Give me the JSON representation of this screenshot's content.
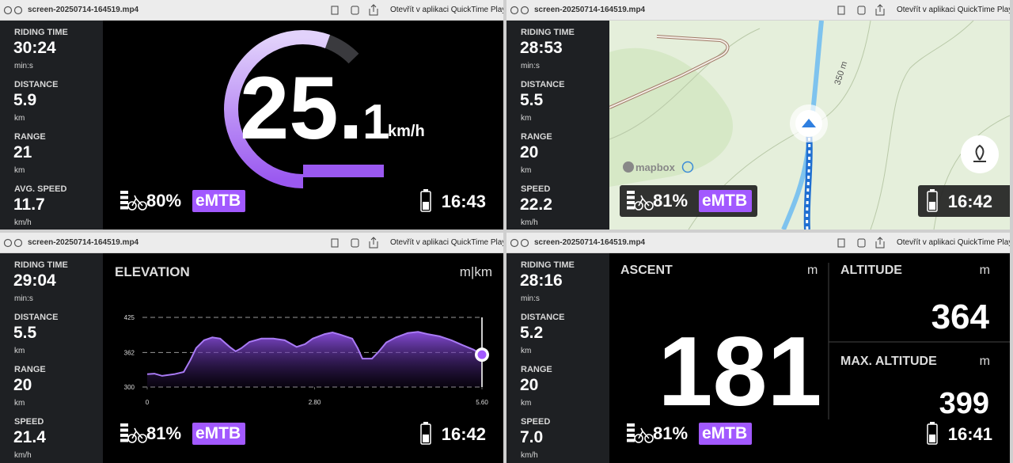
{
  "windows": [
    {
      "title": "screen-20250714-164519.mp4",
      "open_button": "Otevřít v aplikaci QuickTime Player",
      "sidebar": [
        {
          "label": "RIDING TIME",
          "value": "30:24",
          "unit": "min:s"
        },
        {
          "label": "DISTANCE",
          "value": "5.9",
          "unit": "km"
        },
        {
          "label": "RANGE",
          "value": "21",
          "unit": "km"
        },
        {
          "label": "AVG. SPEED",
          "value": "11.7",
          "unit": "km/h"
        }
      ],
      "speed": {
        "whole": "25.",
        "fraction": "1",
        "unit": "km/h"
      },
      "status": {
        "battery": "80%",
        "mode": "eMTB",
        "time": "16:43"
      }
    },
    {
      "title": "screen-20250714-164519.mp4",
      "open_button": "Otevřít v aplikaci QuickTime Player",
      "sidebar": [
        {
          "label": "RIDING TIME",
          "value": "28:53",
          "unit": "min:s"
        },
        {
          "label": "DISTANCE",
          "value": "5.5",
          "unit": "km"
        },
        {
          "label": "RANGE",
          "value": "20",
          "unit": "km"
        },
        {
          "label": "SPEED",
          "value": "22.2",
          "unit": "km/h"
        }
      ],
      "map": {
        "contour_label": "350 m",
        "attribution": "mapbox"
      },
      "status": {
        "battery": "81%",
        "mode": "eMTB",
        "time": "16:42"
      }
    },
    {
      "title": "screen-20250714-164519.mp4",
      "open_button": "Otevřít v aplikaci QuickTime Player",
      "sidebar": [
        {
          "label": "RIDING TIME",
          "value": "29:04",
          "unit": "min:s"
        },
        {
          "label": "DISTANCE",
          "value": "5.5",
          "unit": "km"
        },
        {
          "label": "RANGE",
          "value": "20",
          "unit": "km"
        },
        {
          "label": "SPEED",
          "value": "21.4",
          "unit": "km/h"
        }
      ],
      "elevation": {
        "title": "ELEVATION",
        "unit": "m|km",
        "ylim": [
          300,
          425
        ],
        "yticks": [
          300,
          362,
          425
        ],
        "xlim": [
          0,
          5.6
        ],
        "xticks": [
          0,
          {
            "value": 2.8,
            "label": "2.80"
          },
          {
            "value": 5.6,
            "label": "5.60"
          }
        ],
        "x": [
          0,
          0.12,
          0.25,
          0.45,
          0.61,
          0.72,
          0.82,
          0.95,
          1.09,
          1.22,
          1.38,
          1.48,
          1.58,
          1.71,
          1.91,
          2.11,
          2.3,
          2.5,
          2.64,
          2.77,
          2.97,
          3.1,
          3.23,
          3.43,
          3.52,
          3.6,
          3.76,
          3.87,
          4.0,
          4.16,
          4.36,
          4.53,
          4.69,
          4.89,
          5.09,
          5.28,
          5.46,
          5.6
        ],
        "values": [
          323,
          324,
          320,
          323,
          327,
          348,
          370,
          384,
          389,
          387,
          372,
          364,
          370,
          381,
          387,
          387,
          384,
          372,
          377,
          387,
          395,
          398,
          394,
          387,
          370,
          351,
          351,
          363,
          380,
          389,
          397,
          399,
          395,
          391,
          384,
          375,
          367,
          358
        ]
      },
      "status": {
        "battery": "81%",
        "mode": "eMTB",
        "time": "16:42"
      }
    },
    {
      "title": "screen-20250714-164519.mp4",
      "open_button": "Otevřít v aplikaci QuickTime Player",
      "sidebar": [
        {
          "label": "RIDING TIME",
          "value": "28:16",
          "unit": "min:s"
        },
        {
          "label": "DISTANCE",
          "value": "5.2",
          "unit": "km"
        },
        {
          "label": "RANGE",
          "value": "20",
          "unit": "km"
        },
        {
          "label": "SPEED",
          "value": "7.0",
          "unit": "km/h"
        }
      ],
      "ascent": {
        "label": "ASCENT",
        "unit": "m",
        "value": 181
      },
      "altitude": {
        "label": "ALTITUDE",
        "unit": "m",
        "value": 364
      },
      "max_altitude": {
        "label": "MAX. ALTITUDE",
        "unit": "m",
        "value": 399
      },
      "status": {
        "battery": "81%",
        "mode": "eMTB",
        "time": "16:41"
      }
    }
  ]
}
